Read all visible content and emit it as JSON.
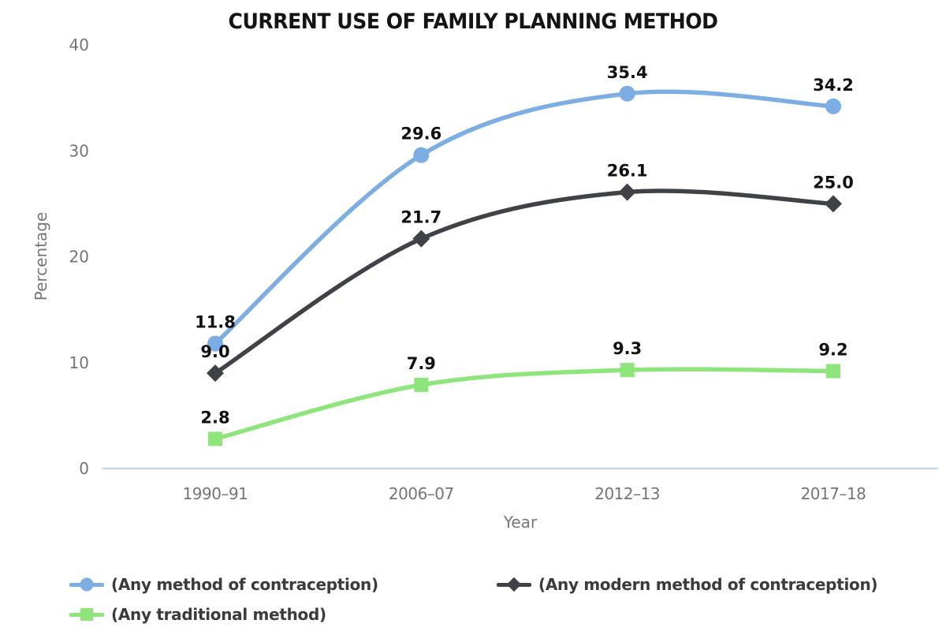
{
  "chart_data": {
    "type": "line",
    "title": "CURRENT USE OF FAMILY PLANNING METHOD",
    "xlabel": "Year",
    "ylabel": "Percentage",
    "categories": [
      "1990–91",
      "2006–07",
      "2012–13",
      "2017–18"
    ],
    "yticks": [
      0,
      10,
      20,
      30,
      40
    ],
    "ylim": [
      0,
      40
    ],
    "grid": false,
    "smooth": true,
    "legend_position": "bottom-left",
    "series": [
      {
        "name": "(Any method of contraception)",
        "marker": "circle",
        "color": "#7cade3",
        "values": [
          11.8,
          29.6,
          35.4,
          34.2
        ]
      },
      {
        "name": "(Any modern method of contraception)",
        "marker": "diamond",
        "color": "#3f4247",
        "values": [
          9.0,
          21.7,
          26.1,
          25.0
        ]
      },
      {
        "name": "(Any traditional method)",
        "marker": "square",
        "color": "#8de57c",
        "values": [
          2.8,
          7.9,
          9.3,
          9.2
        ]
      }
    ],
    "colors": {
      "axis_line": "#c9d5ea",
      "tick_text": "#757575",
      "data_label_text": "#111111",
      "title_text": "#141414",
      "legend_text": "#3b3b3b"
    }
  }
}
